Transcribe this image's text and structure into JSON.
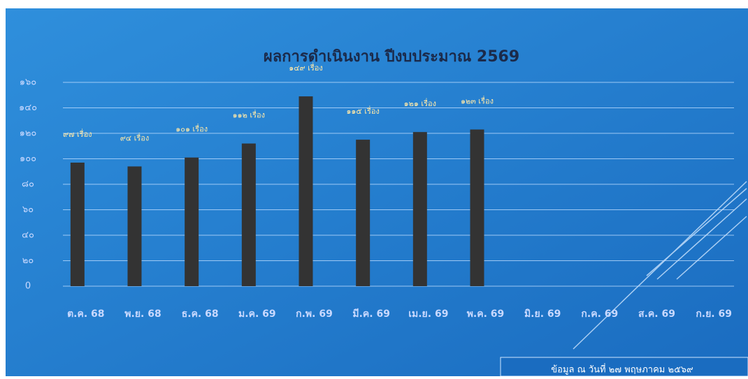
{
  "chart_data": {
    "type": "bar",
    "title": "ผลการดำเนินงาน ปีงบประมาณ 2569",
    "categories": [
      "ต.ค. 68",
      "พ.ย. 68",
      "ธ.ค. 68",
      "ม.ค. 69",
      "ก.พ. 69",
      "มี.ค. 69",
      "เม.ย. 69",
      "พ.ค. 69",
      "มิ.ย. 69",
      "ก.ค. 69",
      "ส.ค. 69",
      "ก.ย. 69"
    ],
    "values": [
      97,
      94,
      101,
      112,
      149,
      115,
      121,
      123,
      null,
      null,
      null,
      null
    ],
    "value_labels": [
      "๙๗ เรื่อง",
      "๙๔ เรื่อง",
      "๑๐๑ เรื่อง",
      "๑๑๒ เรื่อง",
      "๑๔๙ เรื่อง",
      "๑๑๕ เรื่อง",
      "๑๒๑ เรื่อง",
      "๑๒๓ เรื่อง",
      null,
      null,
      null,
      null
    ],
    "color": "#333333",
    "ylim": [
      0,
      160
    ],
    "yticks": [
      0,
      {
        "value": 20,
        "label": "๒๐"
      },
      {
        "value": 40,
        "label": "๔๐"
      },
      {
        "value": 60,
        "label": "๖๐"
      },
      {
        "value": 80,
        "label": "๘๐"
      },
      {
        "value": 100,
        "label": "๑๐๐"
      },
      {
        "value": 120,
        "label": "๑๒๐"
      },
      {
        "value": 140,
        "label": "๑๔๐"
      },
      {
        "value": 160,
        "label": "๑๖๐"
      }
    ],
    "grid": true,
    "footnote": "ข้อมูล ณ วันที่ ๒๗ พฤษภาคม ๒๕๖๙"
  }
}
